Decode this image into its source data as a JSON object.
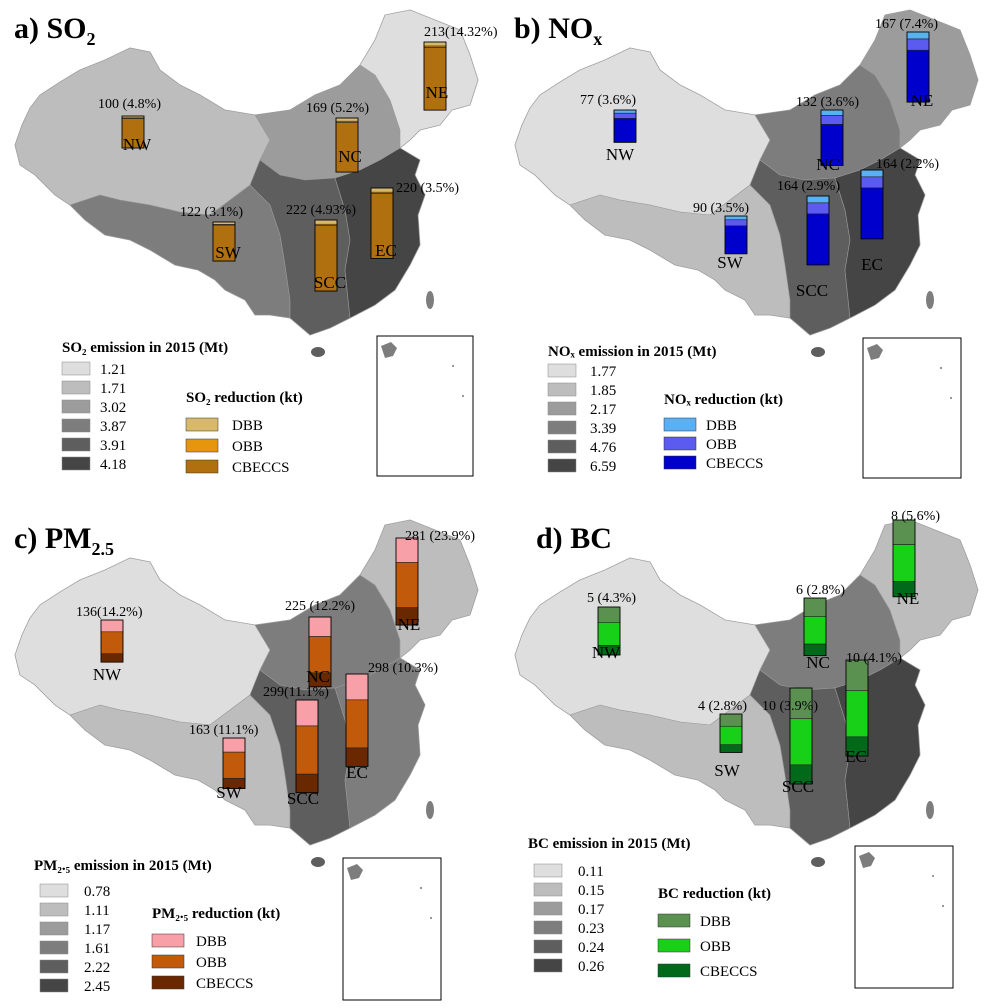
{
  "panels": [
    {
      "letter": "a)",
      "pollutant_base": "SO",
      "pollutant_sub": "2",
      "legend_emission_title": "SO₂ emission in 2015 (Mt)",
      "emission_levels": [
        "1.21",
        "1.71",
        "3.02",
        "3.87",
        "3.91",
        "4.18"
      ],
      "legend_reduction_title": "SO₂ reduction (kt)",
      "reduction_labels": [
        "DBB",
        "OBB",
        "CBECCS"
      ],
      "reduction_colors": [
        "#d8b86a",
        "#e6960c",
        "#b07010"
      ],
      "regions": [
        {
          "code": "NE",
          "label": "213(14.32%)",
          "value": 213
        },
        {
          "code": "NW",
          "label": "100 (4.8%)",
          "value": 100
        },
        {
          "code": "NC",
          "label": "169 (5.2%)",
          "value": 169
        },
        {
          "code": "SW",
          "label": "122 (3.1%)",
          "value": 122
        },
        {
          "code": "SCC",
          "label": "222 (4.93%)",
          "value": 222
        },
        {
          "code": "EC",
          "label": "220 (3.5%)",
          "value": 220
        }
      ]
    },
    {
      "letter": "b)",
      "pollutant_base": "NO",
      "pollutant_sub": "x",
      "legend_emission_title": "NOₓ emission in 2015 (Mt)",
      "emission_levels": [
        "1.77",
        "1.85",
        "2.17",
        "3.39",
        "4.76",
        "6.59"
      ],
      "legend_reduction_title": "NOₓ reduction (kt)",
      "reduction_labels": [
        "DBB",
        "OBB",
        "CBECCS"
      ],
      "reduction_colors": [
        "#5ab0f5",
        "#5b5bf0",
        "#0000cc"
      ],
      "regions": [
        {
          "code": "NE",
          "label": "167 (7.4%)",
          "value": 167
        },
        {
          "code": "NW",
          "label": "77 (3.6%)",
          "value": 77
        },
        {
          "code": "NC",
          "label": "132 (3.6%)",
          "value": 132
        },
        {
          "code": "SW",
          "label": "90 (3.5%)",
          "value": 90
        },
        {
          "code": "SCC",
          "label": "164 (2.9%)",
          "value": 164
        },
        {
          "code": "EC",
          "label": "164 (2.2%)",
          "value": 164
        }
      ]
    },
    {
      "letter": "c)",
      "pollutant_base": "PM",
      "pollutant_sub": "2.5",
      "legend_emission_title": "PM₂.₅ emission in 2015 (Mt)",
      "emission_levels": [
        "0.78",
        "1.11",
        "1.17",
        "1.61",
        "2.22",
        "2.45"
      ],
      "legend_reduction_title": "PM₂.₅ reduction (kt)",
      "reduction_labels": [
        "DBB",
        "OBB",
        "CBECCS"
      ],
      "reduction_colors": [
        "#f7a0a8",
        "#c25a0c",
        "#6a2800"
      ],
      "regions": [
        {
          "code": "NE",
          "label": "281 (23.9%)",
          "value": 281
        },
        {
          "code": "NW",
          "label": "136(14.2%)",
          "value": 136
        },
        {
          "code": "NC",
          "label": "225 (12.2%)",
          "value": 225
        },
        {
          "code": "SW",
          "label": "163 (11.1%)",
          "value": 163
        },
        {
          "code": "SCC",
          "label": "299(11.1%)",
          "value": 299
        },
        {
          "code": "EC",
          "label": "298 (10.3%)",
          "value": 298
        }
      ]
    },
    {
      "letter": "d)",
      "pollutant_base": "BC",
      "pollutant_sub": "",
      "legend_emission_title": "BC emission in 2015 (Mt)",
      "emission_levels": [
        "0.11",
        "0.15",
        "0.17",
        "0.23",
        "0.24",
        "0.26"
      ],
      "legend_reduction_title": "BC reduction (kt)",
      "reduction_labels": [
        "DBB",
        "OBB",
        "CBECCS"
      ],
      "reduction_colors": [
        "#5a9050",
        "#18d018",
        "#006a1a"
      ],
      "regions": [
        {
          "code": "NE",
          "label": "8 (5.6%)",
          "value": 8
        },
        {
          "code": "NW",
          "label": "5 (4.3%)",
          "value": 5
        },
        {
          "code": "NC",
          "label": "6 (2.8%)",
          "value": 6
        },
        {
          "code": "SW",
          "label": "4 (2.8%)",
          "value": 4
        },
        {
          "code": "SCC",
          "label": "10 (3.9%)",
          "value": 10
        },
        {
          "code": "EC",
          "label": "10 (4.1%)",
          "value": 10
        }
      ]
    }
  ],
  "grey_scale": [
    "#dedede",
    "#bdbdbd",
    "#9c9c9c",
    "#7d7d7d",
    "#5e5e5e",
    "#454545"
  ]
}
